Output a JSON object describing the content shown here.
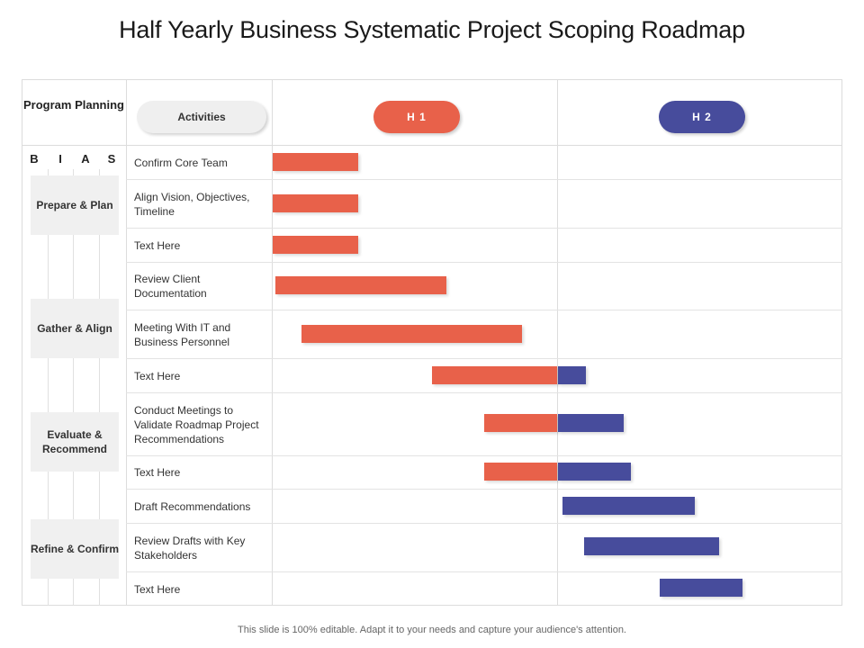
{
  "title": "Half Yearly Business Systematic Project Scoping Roadmap",
  "header": {
    "program_planning": "Program Planning",
    "activities_label": "Activities",
    "h1_label": "H 1",
    "h2_label": "H 2"
  },
  "bias": [
    "B",
    "I",
    "A",
    "S"
  ],
  "phases": [
    {
      "label": "Prepare & Plan"
    },
    {
      "label": "Gather & Align"
    },
    {
      "label": "Evaluate & Recommend"
    },
    {
      "label": "Refine & Confirm"
    }
  ],
  "colors": {
    "h1": "#e8614a",
    "h2": "#474c9c"
  },
  "chart_data": {
    "type": "gantt",
    "timeline_units": "months",
    "periods": [
      {
        "name": "H 1",
        "start": 0,
        "end": 6
      },
      {
        "name": "H 2",
        "start": 6,
        "end": 12
      }
    ],
    "tasks": [
      {
        "label": "Confirm Core Team",
        "start": 0.0,
        "end": 1.8
      },
      {
        "label": "Align Vision, Objectives, Timeline",
        "start": 0.0,
        "end": 1.8
      },
      {
        "label": "Text Here",
        "start": 0.0,
        "end": 1.8
      },
      {
        "label": "Review Client Documentation",
        "start": 0.05,
        "end": 3.65
      },
      {
        "label": "Meeting With IT and Business Personnel",
        "start": 0.6,
        "end": 5.25
      },
      {
        "label": "Text Here",
        "start": 3.35,
        "end": 6.6
      },
      {
        "label": "Conduct Meetings to Validate Roadmap Project Recommendations",
        "start": 4.45,
        "end": 7.4
      },
      {
        "label": "Text Here",
        "start": 4.45,
        "end": 7.55
      },
      {
        "label": "Draft Recommendations",
        "start": 6.1,
        "end": 8.9
      },
      {
        "label": "Review Drafts with Key Stakeholders",
        "start": 6.55,
        "end": 9.4
      },
      {
        "label": "Text Here",
        "start": 8.15,
        "end": 9.9
      }
    ]
  },
  "footnote": "This slide is 100% editable. Adapt it to your needs and capture your audience's attention."
}
